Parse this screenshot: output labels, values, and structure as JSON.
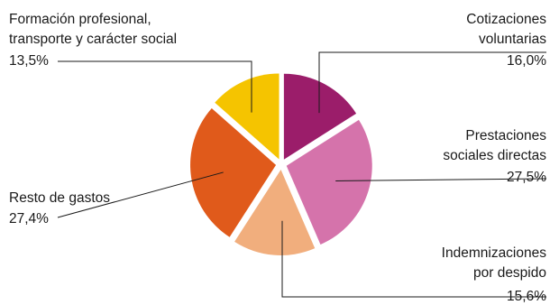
{
  "chart_data": {
    "type": "pie",
    "title": "",
    "slices": [
      {
        "name_lines": [
          "Cotizaciones",
          "voluntarias"
        ],
        "value": 16.0,
        "value_label": "16,0%",
        "color": "#9B1D6A"
      },
      {
        "name_lines": [
          "Prestaciones",
          "sociales directas"
        ],
        "value": 27.5,
        "value_label": "27,5%",
        "color": "#D573AB"
      },
      {
        "name_lines": [
          "Indemnizaciones",
          "por despido"
        ],
        "value": 15.6,
        "value_label": "15,6%",
        "color": "#F1AE7D"
      },
      {
        "name_lines": [
          "Resto de gastos"
        ],
        "value": 27.4,
        "value_label": "27,4%",
        "color": "#E05A1B"
      },
      {
        "name_lines": [
          "Formación profesional,",
          "transporte y carácter social"
        ],
        "value": 13.5,
        "value_label": "13,5%",
        "color": "#F5C400"
      }
    ]
  }
}
